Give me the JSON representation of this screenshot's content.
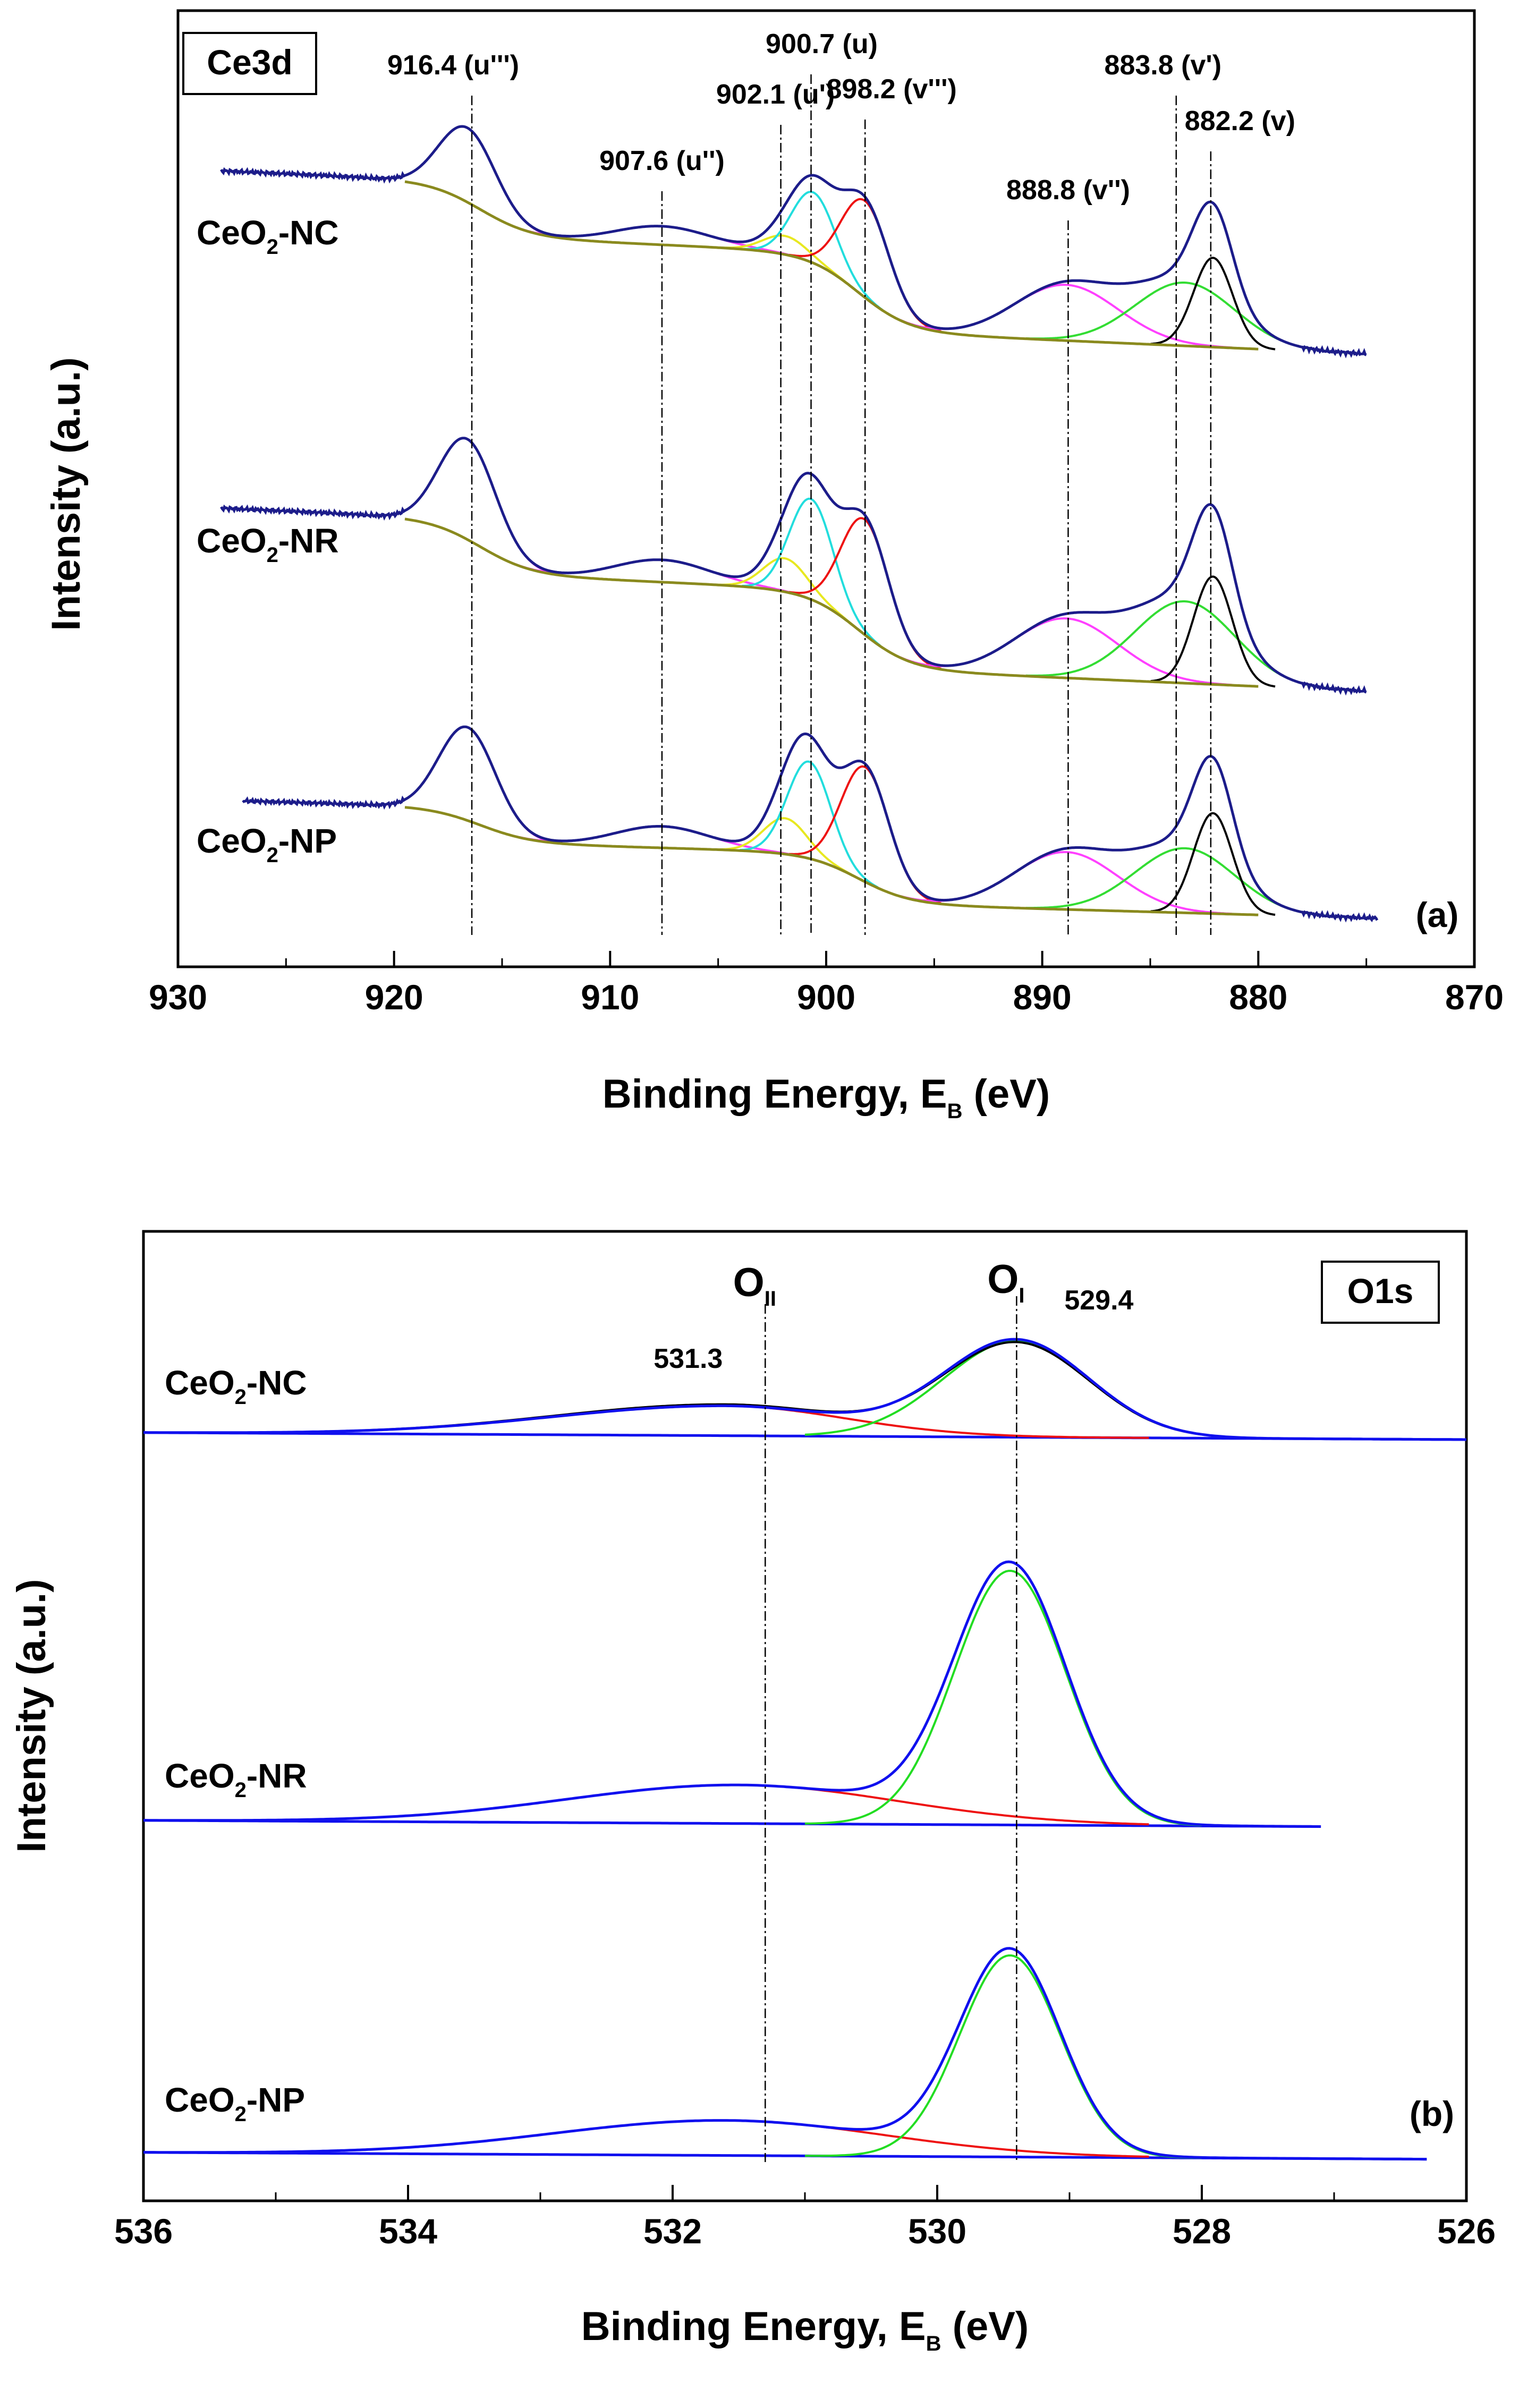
{
  "chart_data": [
    {
      "panel": "a",
      "type": "line",
      "title": "Ce3d",
      "panel_label": "(a)",
      "xlabel": "Binding Energy, E",
      "xlabel_sub": "B",
      "xlabel_unit": " (eV)",
      "ylabel": "Intensity (a.u.)",
      "xlim": [
        930,
        870
      ],
      "xticks": [
        930,
        920,
        910,
        900,
        890,
        880,
        870
      ],
      "peak_markers": [
        {
          "energy": 916.4,
          "label": "916.4 (u''')"
        },
        {
          "energy": 907.6,
          "label": "907.6 (u'')"
        },
        {
          "energy": 902.1,
          "label": "902.1 (u')"
        },
        {
          "energy": 900.7,
          "label": "900.7 (u)"
        },
        {
          "energy": 898.2,
          "label": "898.2 (v''')"
        },
        {
          "energy": 888.8,
          "label": "888.8 (v'')"
        },
        {
          "energy": 883.8,
          "label": "883.8 (v')"
        },
        {
          "energy": 882.2,
          "label": "882.2 (v)"
        }
      ],
      "samples": [
        {
          "name": "CeO",
          "sub": "2",
          "suffix": "-NC",
          "label_energy": 925.5,
          "start": 928,
          "end": 875,
          "base_left": 2.55,
          "base_right": 0.0,
          "peaks": [
            [
              916.6,
              1.0,
              1.3
            ],
            [
              907.6,
              0.25,
              2.2
            ],
            [
              901.9,
              0.25,
              1.0
            ],
            [
              900.6,
              0.95,
              1.0
            ],
            [
              898.2,
              1.3,
              1.1
            ],
            [
              888.9,
              0.75,
              2.4
            ],
            [
              883.4,
              0.85,
              2.3
            ],
            [
              882.1,
              1.2,
              0.9
            ]
          ]
        },
        {
          "name": "CeO",
          "sub": "2",
          "suffix": "-NR",
          "label_energy": 925.5,
          "start": 928,
          "end": 875,
          "base_left": 2.55,
          "base_right": 0.0,
          "peaks": [
            [
              916.6,
              1.35,
              1.3
            ],
            [
              907.6,
              0.3,
              2.2
            ],
            [
              901.9,
              0.45,
              1.0
            ],
            [
              900.7,
              1.35,
              1.0
            ],
            [
              898.2,
              1.55,
              1.1
            ],
            [
              888.9,
              0.8,
              2.4
            ],
            [
              883.4,
              1.1,
              2.3
            ],
            [
              882.1,
              1.45,
              0.9
            ]
          ]
        },
        {
          "name": "CeO",
          "sub": "2",
          "suffix": "-NP",
          "label_energy": 925.5,
          "start": 927,
          "end": 874.5,
          "base_left": 1.7,
          "base_right": 0.0,
          "peaks": [
            [
              916.6,
              1.3,
              1.3
            ],
            [
              907.6,
              0.3,
              2.2
            ],
            [
              901.9,
              0.5,
              1.0
            ],
            [
              900.8,
              1.35,
              1.0
            ],
            [
              898.2,
              1.6,
              1.1
            ],
            [
              888.9,
              0.8,
              2.4
            ],
            [
              883.4,
              0.9,
              2.3
            ],
            [
              882.1,
              1.4,
              0.9
            ]
          ]
        }
      ]
    },
    {
      "panel": "b",
      "type": "line",
      "title": "O1s",
      "panel_label": "(b)",
      "xlabel": "Binding Energy, E",
      "xlabel_sub": "B",
      "xlabel_unit": " (eV)",
      "ylabel": "Intensity (a.u.)",
      "xlim": [
        536,
        526
      ],
      "xticks": [
        536,
        534,
        532,
        530,
        528,
        526
      ],
      "components": [
        {
          "name": "O",
          "sub": "II",
          "energy": 531.3,
          "value_label": "531.3"
        },
        {
          "name": "O",
          "sub": "I",
          "energy": 529.4,
          "value_label": "529.4"
        }
      ],
      "samples": [
        {
          "name": "CeO",
          "sub": "2",
          "suffix": "-NC",
          "start": 536,
          "end": 526,
          "peak_center": 529.4,
          "OI_height": 0.55,
          "OI_width": 0.55,
          "OII_center": 531.6,
          "OII_height": 0.17,
          "OII_width_left": 1.3,
          "OII_width_right": 0.9
        },
        {
          "name": "CeO",
          "sub": "2",
          "suffix": "-NR",
          "start": 536,
          "end": 527.1,
          "peak_center": 529.45,
          "OI_height": 1.45,
          "OI_width": 0.42,
          "OII_center": 531.5,
          "OII_height": 0.22,
          "OII_width_left": 1.3,
          "OII_width_right": 1.2
        },
        {
          "name": "CeO",
          "sub": "2",
          "suffix": "-NP",
          "start": 536,
          "end": 526.3,
          "peak_center": 529.45,
          "OI_height": 1.15,
          "OI_width": 0.38,
          "OII_center": 531.6,
          "OII_height": 0.2,
          "OII_width_left": 1.3,
          "OII_width_right": 1.2
        }
      ]
    }
  ],
  "colors": {
    "envelope": "#1c1c8a",
    "background": "#8a8a1e",
    "fit_magenta": "#ff40ff",
    "fit_green": "#33dd33",
    "fit_black": "#000000",
    "fit_cyan": "#22dddd",
    "fit_yellow": "#e8e820",
    "fit_red": "#ee1111",
    "o1s_total": "#1010ee",
    "o1s_oi": "#22dd22",
    "o1s_oii": "#ee1111",
    "o1s_raw": "#000000"
  }
}
